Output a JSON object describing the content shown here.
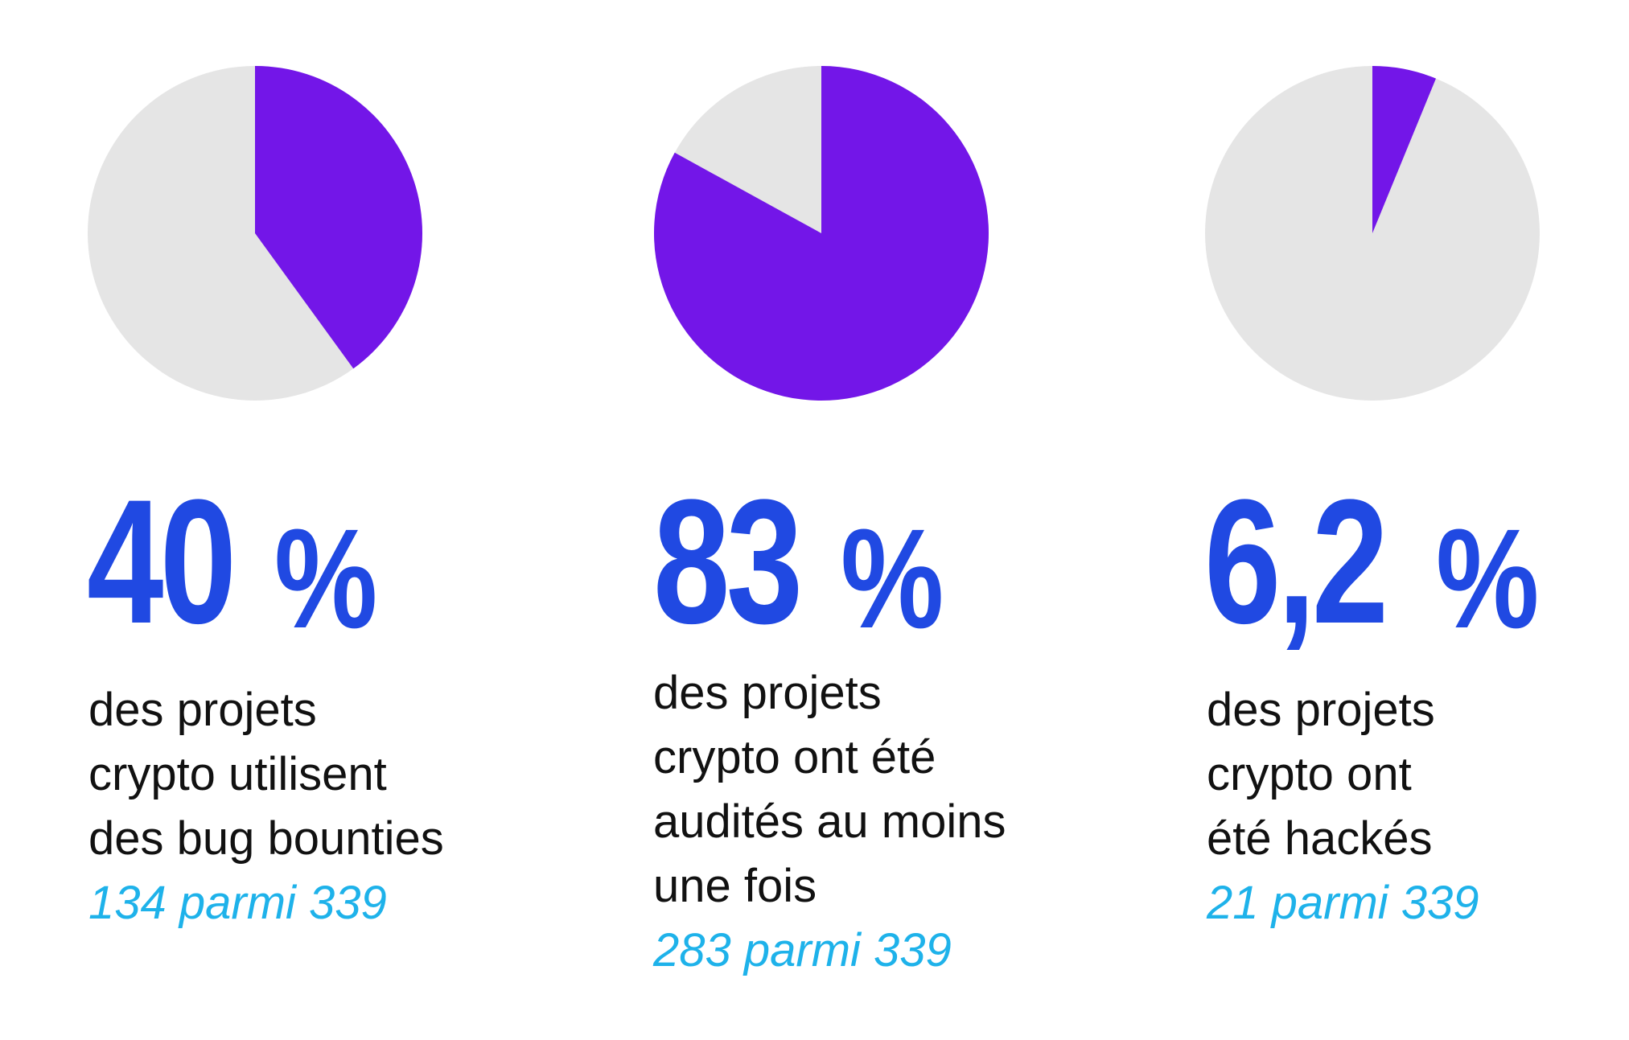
{
  "chart_data": [
    {
      "type": "pie",
      "values": [
        40,
        60
      ],
      "highlight_value": 40,
      "colors": {
        "highlight": "#7316e8",
        "rest": "#e5e5e5"
      },
      "big_number": "40",
      "percent_sign": "%",
      "description_lines": [
        "des projets",
        "crypto utilisent",
        "des bug bounties"
      ],
      "count_text": "134 parmi 339"
    },
    {
      "type": "pie",
      "values": [
        83,
        17
      ],
      "highlight_value": 83,
      "colors": {
        "highlight": "#7316e8",
        "rest": "#e5e5e5"
      },
      "big_number": "83",
      "percent_sign": "%",
      "description_lines": [
        "des projets",
        "crypto ont été",
        "audités au moins",
        "une fois"
      ],
      "count_text": "283 parmi 339"
    },
    {
      "type": "pie",
      "values": [
        6.2,
        93.8
      ],
      "highlight_value": 6.2,
      "colors": {
        "highlight": "#7316e8",
        "rest": "#e5e5e5"
      },
      "big_number": "6,2",
      "percent_sign": "%",
      "description_lines": [
        "des projets",
        "crypto ont",
        "été hackés"
      ],
      "count_text": "21 parmi 339"
    }
  ],
  "theme": {
    "number_color": "#2049e2",
    "text_color": "#111111",
    "count_color": "#1eb2ea"
  }
}
